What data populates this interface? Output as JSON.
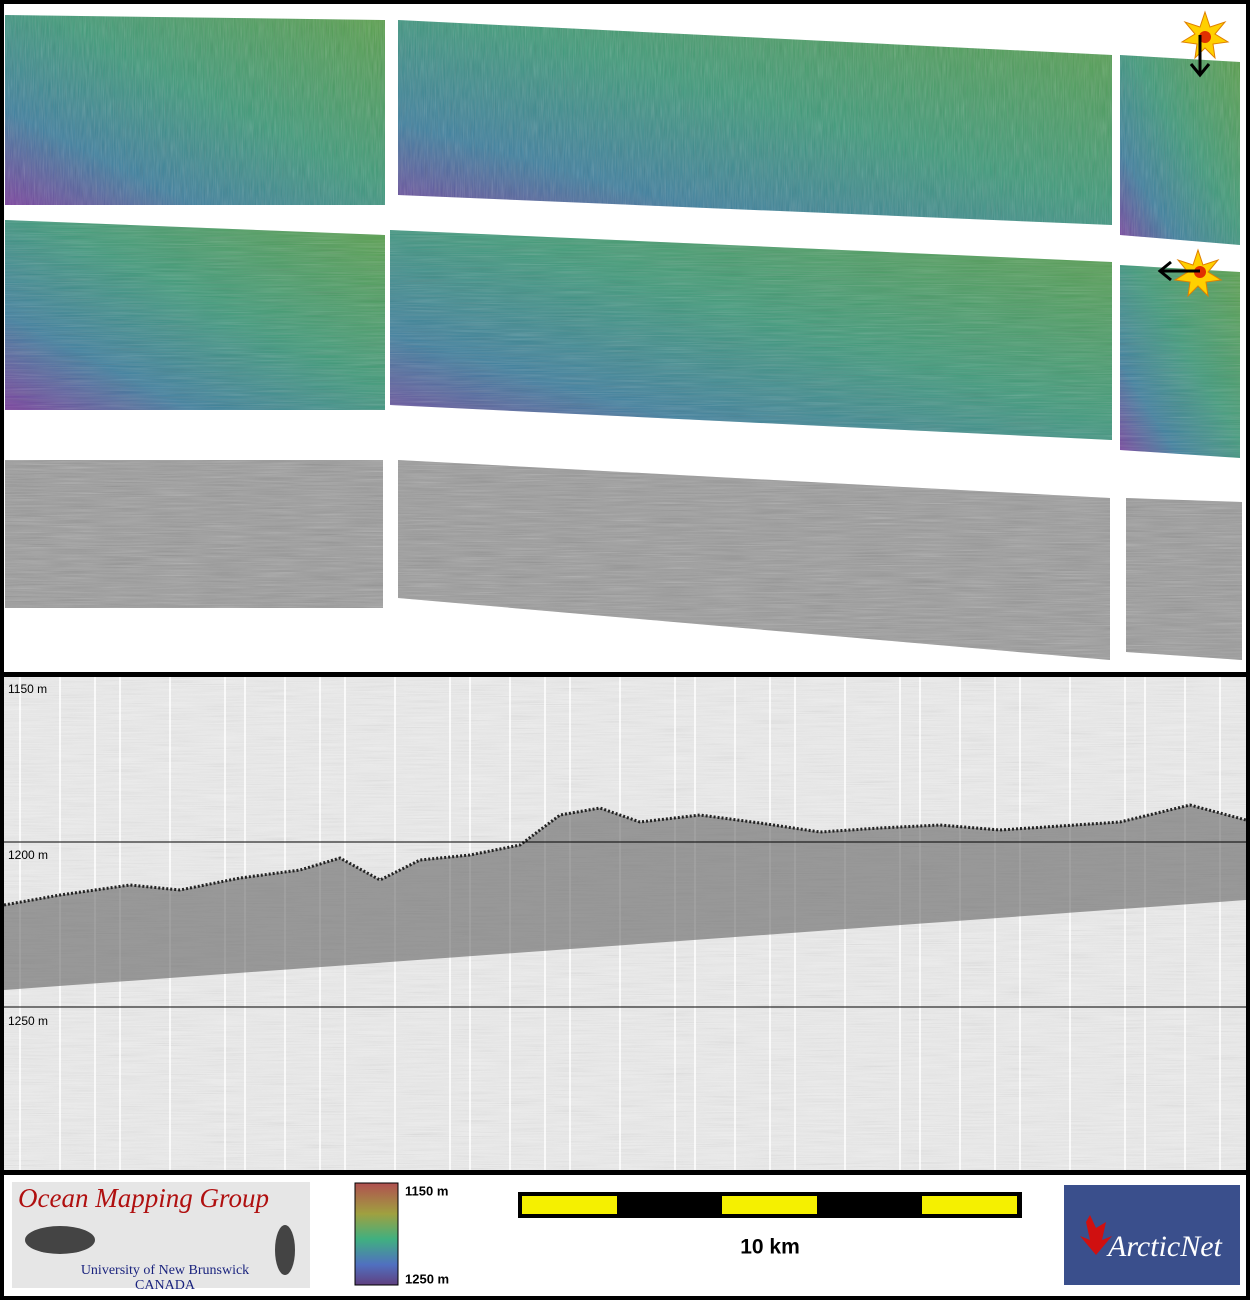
{
  "profile": {
    "depth_labels": [
      "1150 m",
      "1200 m",
      "1250 m"
    ]
  },
  "footer": {
    "logo_title": "Ocean Mapping Group",
    "logo_university": "University of New Brunswick",
    "logo_country": "CANADA",
    "colorbar_labels": [
      "1150 m",
      "1250 m"
    ],
    "scale_label": "10 km",
    "partner_logo": "ArcticNet"
  }
}
